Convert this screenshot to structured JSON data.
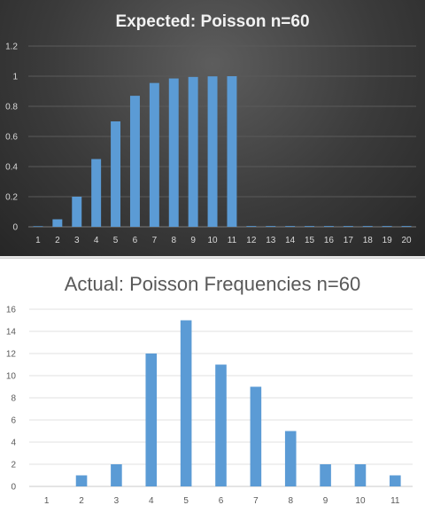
{
  "chart_data": [
    {
      "type": "bar",
      "title": "Expected:  Poisson  n=60",
      "categories": [
        "1",
        "2",
        "3",
        "4",
        "5",
        "6",
        "7",
        "8",
        "9",
        "10",
        "11",
        "12",
        "13",
        "14",
        "15",
        "16",
        "17",
        "18",
        "19",
        "20"
      ],
      "values": [
        0.004,
        0.05,
        0.2,
        0.45,
        0.7,
        0.87,
        0.955,
        0.985,
        0.995,
        0.999,
        1.0,
        0.005,
        0.005,
        0.005,
        0.005,
        0.005,
        0.005,
        0.005,
        0.005,
        0.005
      ],
      "yticks": [
        "0",
        "0.2",
        "0.4",
        "0.6",
        "0.8",
        "1",
        "1.2"
      ],
      "ylim": [
        0,
        1.2
      ],
      "grid": true,
      "bar_color": "#5b9bd5",
      "background": "#404040"
    },
    {
      "type": "bar",
      "title": "Actual: Poisson Frequencies n=60",
      "categories": [
        "1",
        "2",
        "3",
        "4",
        "5",
        "6",
        "7",
        "8",
        "9",
        "10",
        "11"
      ],
      "values": [
        0,
        1,
        2,
        12,
        15,
        11,
        9,
        5,
        2,
        2,
        1
      ],
      "yticks": [
        "0",
        "2",
        "4",
        "6",
        "8",
        "10",
        "12",
        "14",
        "16"
      ],
      "ylim": [
        0,
        16
      ],
      "grid": true,
      "bar_color": "#5b9bd5",
      "background": "#ffffff"
    }
  ]
}
